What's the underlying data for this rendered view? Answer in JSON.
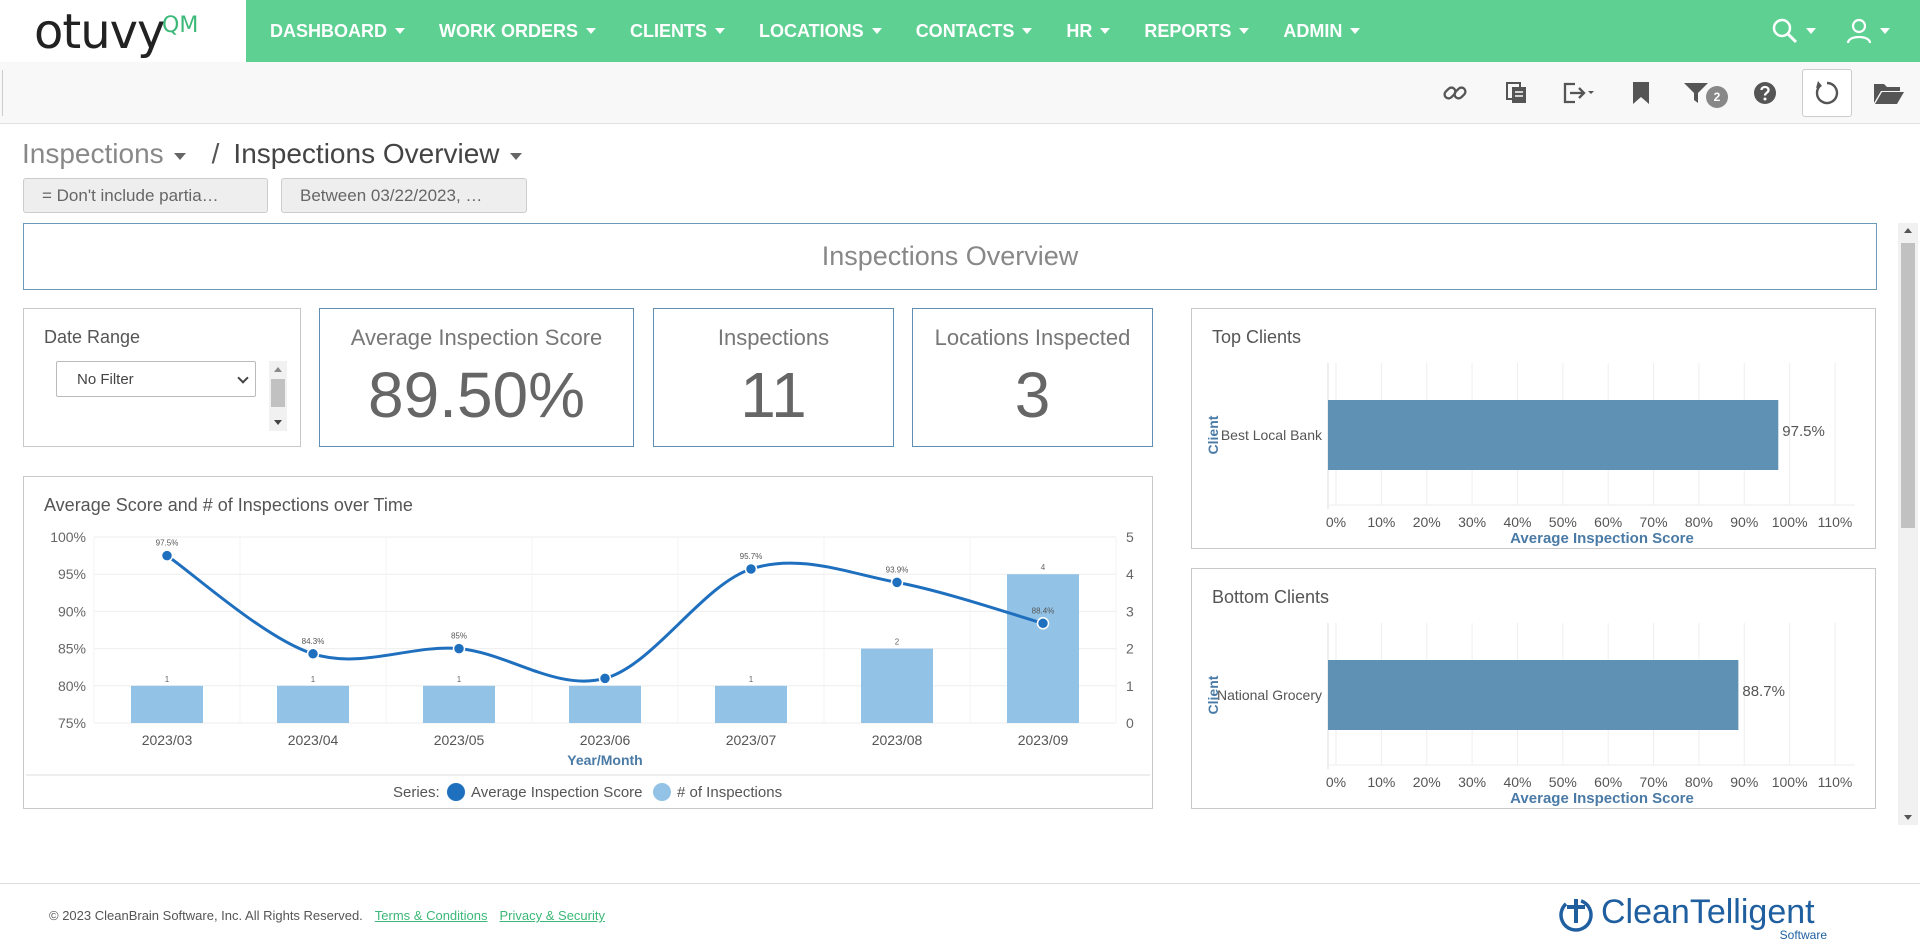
{
  "brand": {
    "logo_text": "otuvy",
    "logo_suffix": "QM",
    "accent": "#5dd092"
  },
  "nav": {
    "items": [
      {
        "label": "DASHBOARD"
      },
      {
        "label": "WORK ORDERS"
      },
      {
        "label": "CLIENTS"
      },
      {
        "label": "LOCATIONS"
      },
      {
        "label": "CONTACTS"
      },
      {
        "label": "HR"
      },
      {
        "label": "REPORTS"
      },
      {
        "label": "ADMIN"
      }
    ],
    "right_icons": [
      "search-icon",
      "user-icon"
    ]
  },
  "toolbar": {
    "icons": [
      "link-icon",
      "copy-icon",
      "export-icon",
      "bookmark-icon",
      "filter-icon",
      "help-icon",
      "refresh-icon",
      "folder-icon"
    ],
    "filter_count": "2"
  },
  "breadcrumb": {
    "parent": "Inspections",
    "separator": "/",
    "current": "Inspections Overview"
  },
  "filters": [
    {
      "label": "= Don't include partia…"
    },
    {
      "label": "Between 03/22/2023, …"
    }
  ],
  "dashboard": {
    "title": "Inspections Overview",
    "date_range": {
      "label": "Date Range",
      "selected": "No Filter"
    },
    "kpis": [
      {
        "label": "Average Inspection Score",
        "value": "89.50%"
      },
      {
        "label": "Inspections",
        "value": "11"
      },
      {
        "label": "Locations Inspected",
        "value": "3"
      }
    ],
    "top_clients_title": "Top Clients",
    "bottom_clients_title": "Bottom Clients",
    "time_chart_title": "Average Score and # of Inspections over Time"
  },
  "chart_data": [
    {
      "type": "line",
      "title": "Average Score and # of Inspections over Time",
      "xlabel": "Year/Month",
      "categories": [
        "2023/03",
        "2023/04",
        "2023/05",
        "2023/06",
        "2023/07",
        "2023/08",
        "2023/09"
      ],
      "series": [
        {
          "name": "Average Inspection Score",
          "type": "line",
          "axis": "left",
          "values": [
            97.5,
            84.3,
            85,
            81,
            95.7,
            93.9,
            88.4
          ],
          "labels": [
            "97.5%",
            "84.3%",
            "85%",
            "",
            "95.7%",
            "93.9%",
            "88.4%"
          ],
          "color": "#1f6fbf"
        },
        {
          "name": "# of Inspections",
          "type": "bar",
          "axis": "right",
          "values": [
            1,
            1,
            1,
            1,
            1,
            2,
            4
          ],
          "labels": [
            "1",
            "1",
            "1",
            "",
            "1",
            "2",
            "4"
          ],
          "color": "#92c3e6"
        }
      ],
      "y_left": {
        "ticks": [
          "75%",
          "80%",
          "85%",
          "90%",
          "95%",
          "100%"
        ],
        "ylim": [
          75,
          100
        ]
      },
      "y_right": {
        "ticks": [
          "0",
          "1",
          "2",
          "3",
          "4",
          "5"
        ],
        "ylim": [
          0,
          5
        ]
      },
      "legend_label": "Series:",
      "legend": "bottom"
    },
    {
      "type": "bar",
      "orientation": "horizontal",
      "title": "Top Clients",
      "categories": [
        "Best Local Bank"
      ],
      "values": [
        97.5
      ],
      "value_labels": [
        "97.5%"
      ],
      "xlabel": "Average Inspection Score",
      "ylabel": "Client",
      "xlim": [
        0,
        110
      ],
      "xticks": [
        "0%",
        "10%",
        "20%",
        "30%",
        "40%",
        "50%",
        "60%",
        "70%",
        "80%",
        "90%",
        "100%",
        "110%"
      ],
      "color": "#5e91b3"
    },
    {
      "type": "bar",
      "orientation": "horizontal",
      "title": "Bottom Clients",
      "categories": [
        "National Grocery"
      ],
      "values": [
        88.7
      ],
      "value_labels": [
        "88.7%"
      ],
      "xlabel": "Average Inspection Score",
      "ylabel": "Client",
      "xlim": [
        0,
        110
      ],
      "xticks": [
        "0%",
        "10%",
        "20%",
        "30%",
        "40%",
        "50%",
        "60%",
        "70%",
        "80%",
        "90%",
        "100%",
        "110%"
      ],
      "color": "#5e91b3"
    }
  ],
  "footer": {
    "copyright": "© 2023 CleanBrain Software, Inc. All Rights Reserved.",
    "terms": "Terms & Conditions",
    "privacy": "Privacy & Security",
    "partner_logo": "CleanTelligent",
    "partner_sub": "Software"
  }
}
